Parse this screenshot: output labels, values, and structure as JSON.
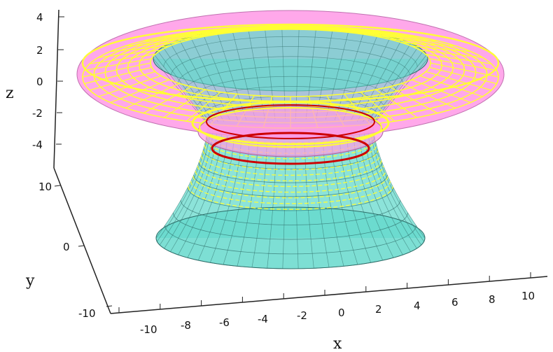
{
  "axes": {
    "x": {
      "label": "x",
      "ticks": [
        "-10",
        "-8",
        "-6",
        "-4",
        "-2",
        "0",
        "2",
        "4",
        "6",
        "8",
        "10"
      ]
    },
    "y": {
      "label": "y",
      "ticks": [
        "10",
        "0",
        "-10"
      ]
    },
    "z": {
      "label": "z",
      "ticks": [
        "4",
        "2",
        "0",
        "-2",
        "-4"
      ]
    }
  },
  "surfaces": [
    {
      "color": "#ff99e6",
      "description": "upper flared sheet"
    },
    {
      "color": "#66d9cc",
      "description": "hyperboloid throat surface"
    },
    {
      "color": "#ffff33",
      "description": "wireframe mesh"
    },
    {
      "color": "#cc0000",
      "description": "throat ring"
    }
  ]
}
